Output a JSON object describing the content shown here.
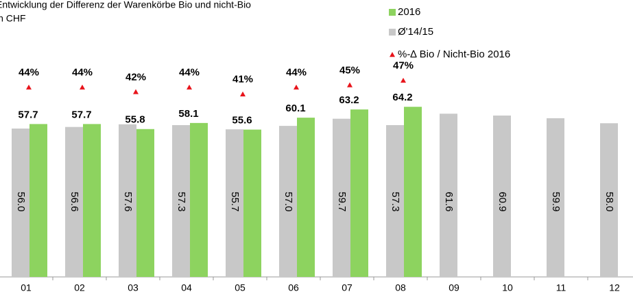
{
  "chart_data": {
    "type": "bar",
    "title": "Entwicklung der Differenz der Warenkörbe Bio und nicht-Bio",
    "subtitle": "in CHF",
    "categories": [
      "01",
      "02",
      "03",
      "04",
      "05",
      "06",
      "07",
      "08",
      "09",
      "10",
      "11",
      "12"
    ],
    "series": [
      {
        "name": "2016",
        "color": "#8dd35f",
        "values": [
          57.7,
          57.7,
          55.8,
          58.1,
          55.6,
          60.1,
          63.2,
          64.2,
          null,
          null,
          null,
          null
        ]
      },
      {
        "name": "Ø'14/15",
        "color": "#c8c8c8",
        "values": [
          56.0,
          56.6,
          57.6,
          57.3,
          55.7,
          57.0,
          59.7,
          57.3,
          61.6,
          60.9,
          59.9,
          58.0
        ],
        "value_labels": [
          "56.0",
          "56.6",
          "57.6",
          "57.3",
          "55.7",
          "57.0",
          "59.7",
          "57.3",
          "61.6",
          "60.9",
          "59.9",
          "58.0"
        ]
      },
      {
        "name": "%-∆ Bio / Nicht-Bio 2016",
        "color": "#e8141b",
        "axis": "y2",
        "marker": "triangle",
        "values": [
          44,
          44,
          42,
          44,
          41,
          44,
          45,
          47,
          null,
          null,
          null,
          null
        ],
        "value_labels": [
          "44%",
          "44%",
          "42%",
          "44%",
          "41%",
          "44%",
          "45%",
          "47%",
          null,
          null,
          null,
          null
        ]
      }
    ],
    "ylim": [
      0,
      100
    ],
    "y2lim": [
      -39,
      77
    ],
    "legend": "top-right"
  }
}
